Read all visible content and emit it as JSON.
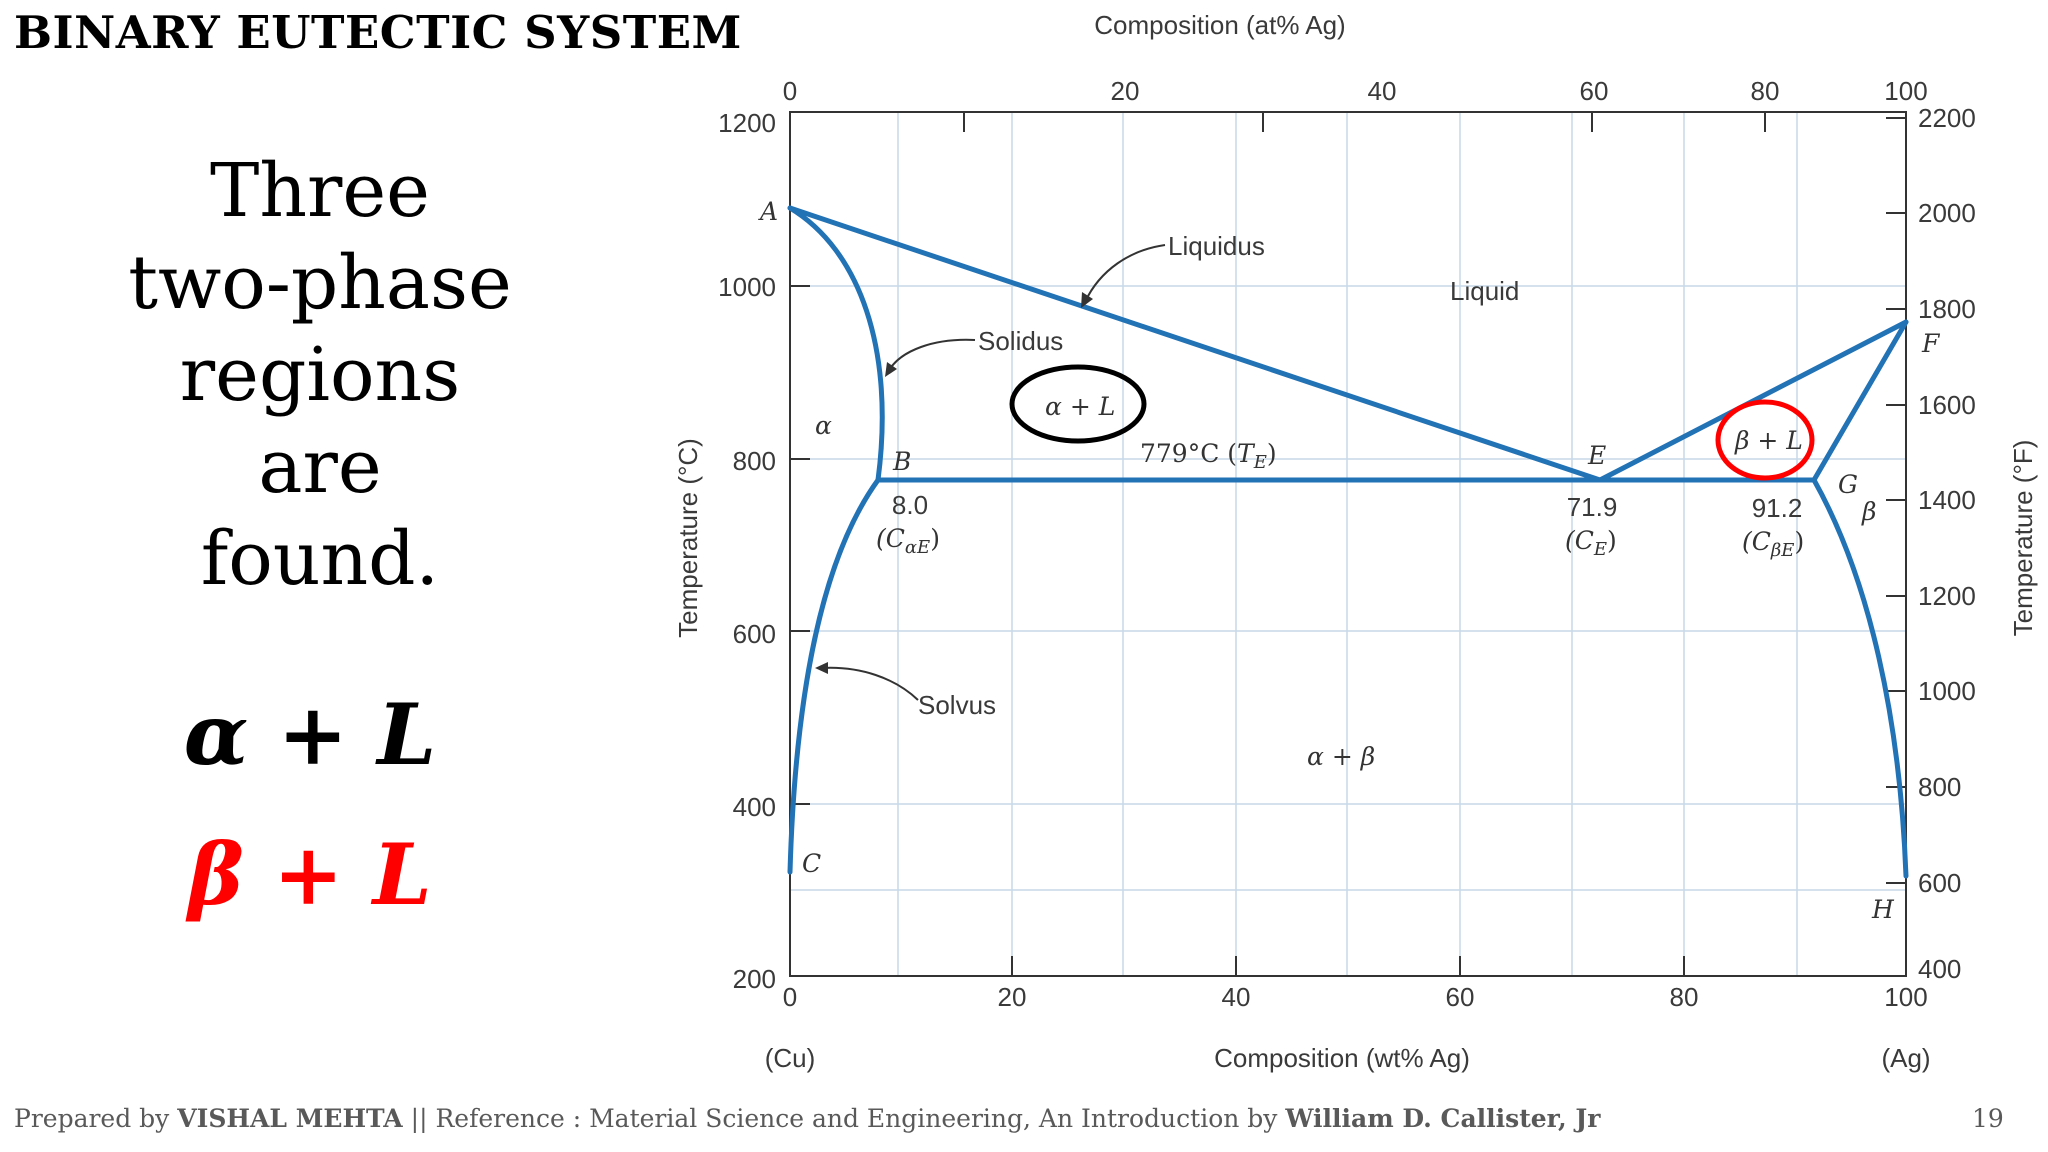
{
  "slide": {
    "title": "BINARY EUTECTIC SYSTEM",
    "text_lines": [
      "Three",
      "two-phase",
      "regions",
      "are",
      "found."
    ],
    "equation_1": "α + L",
    "equation_2": "β + L",
    "footer": {
      "prefix": "Prepared by",
      "author": "VISHAL MEHTA",
      "middle": "|| Reference : Material Science and Engineering, An Introduction by",
      "book_author": "William D. Callister, Jr"
    },
    "page_number": "19"
  },
  "diagram": {
    "top_axis_label": "Composition (at% Ag)",
    "top_ticks": [
      "0",
      "20",
      "40",
      "60",
      "80",
      "100"
    ],
    "bottom_axis_label": "Composition (wt% Ag)",
    "bottom_ticks": [
      "0",
      "20",
      "40",
      "60",
      "80",
      "100"
    ],
    "left_axis_label": "Temperature (°C)",
    "left_ticks": [
      "1200",
      "1000",
      "800",
      "600",
      "400",
      "200"
    ],
    "right_axis_label": "Temperature (°F)",
    "right_ticks": [
      "2200",
      "2000",
      "1800",
      "1600",
      "1400",
      "1200",
      "1000",
      "800",
      "600",
      "400"
    ],
    "left_end_label": "(Cu)",
    "right_end_label": "(Ag)",
    "labels": {
      "liquidus": "Liquidus",
      "solidus": "Solidus",
      "solvus": "Solvus",
      "liquid": "Liquid",
      "alpha": "α",
      "beta": "β",
      "alpha_L": "α + L",
      "beta_L": "β + L",
      "alpha_beta": "α + β",
      "eutectic_temp": "779°C (",
      "eutectic_temp_sym": "T",
      "eutectic_temp_sub": "E",
      "close_paren": ")",
      "point_A": "A",
      "point_B": "B",
      "point_C": "C",
      "point_E": "E",
      "point_F": "F",
      "point_G": "G",
      "point_H": "H",
      "B_value": "8.0",
      "B_sym_open": "(C",
      "B_sym_sub": "αE",
      "E_value": "71.9",
      "E_sym_open": "(C",
      "E_sym_sub": "E",
      "G_value": "91.2",
      "G_sym_open": "(C",
      "G_sym_sub": "βE"
    },
    "colors": {
      "curve": "#2272b6",
      "grid": "#c7d9e8",
      "highlight_alpha_L": "#000000",
      "highlight_beta_L": "#ff0000"
    }
  }
}
